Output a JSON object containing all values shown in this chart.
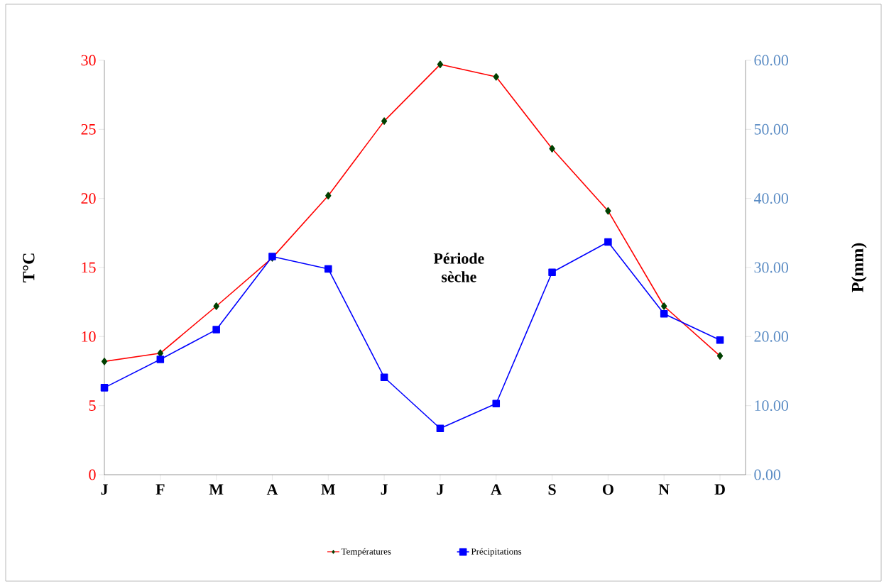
{
  "chart_data": {
    "type": "line",
    "categories": [
      "J",
      "F",
      "M",
      "A",
      "M",
      "J",
      "J",
      "A",
      "S",
      "O",
      "N",
      "D"
    ],
    "ylabel": "T°C",
    "y2label": "P(mm)",
    "ylim": [
      0,
      30
    ],
    "yticks": [
      0,
      5,
      10,
      15,
      20,
      25,
      30
    ],
    "y2lim": [
      0,
      60
    ],
    "y2ticks": [
      {
        "value": 0,
        "label": "0.00"
      },
      {
        "value": 10,
        "label": "10.00"
      },
      {
        "value": 20,
        "label": "20.00"
      },
      {
        "value": 30,
        "label": "30.00"
      },
      {
        "value": 40,
        "label": "40.00"
      },
      {
        "value": 50,
        "label": "50.00"
      },
      {
        "value": 60,
        "label": "60.00"
      }
    ],
    "series": [
      {
        "name": "Températures",
        "color": "#ff0000",
        "marker": "diamond",
        "values": [
          8.2,
          8.8,
          12.2,
          15.7,
          20.2,
          25.6,
          29.7,
          28.8,
          23.6,
          19.1,
          12.2,
          8.6
        ]
      },
      {
        "name": "Précipitations",
        "color": "#0000ff",
        "marker": "square",
        "axis": "y2",
        "values": [
          12.6,
          16.7,
          21.0,
          31.6,
          29.8,
          14.1,
          6.7,
          10.3,
          29.3,
          33.7,
          23.3,
          19.5
        ]
      }
    ],
    "annotations": [
      "Période sèche"
    ],
    "legend": "bottom",
    "grid": false
  }
}
